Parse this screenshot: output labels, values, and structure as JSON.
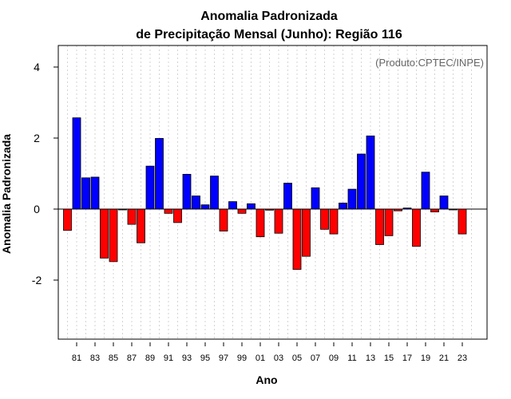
{
  "chart_data": {
    "type": "bar",
    "title": "Anomalia Padronizada",
    "subtitle": "de Precipitação Mensal (Junho): Região 116",
    "xlabel": "Ano",
    "ylabel": "Anomalia Padronizada",
    "credit": "(Produto:CPTEC/INPE)",
    "ylim": [
      -3.7,
      4.6
    ],
    "yticks": [
      -2,
      0,
      2,
      4
    ],
    "yticklabels": [
      "-2",
      "0",
      "2",
      "4"
    ],
    "grid": "vertical dotted",
    "positive_color": "#0000ff",
    "negative_color": "#ff0000",
    "years": [
      "1980",
      "1981",
      "1982",
      "1983",
      "1984",
      "1985",
      "1986",
      "1987",
      "1988",
      "1989",
      "1990",
      "1991",
      "1992",
      "1993",
      "1994",
      "1995",
      "1996",
      "1997",
      "1998",
      "1999",
      "2000",
      "2001",
      "2002",
      "2003",
      "2004",
      "2005",
      "2006",
      "2007",
      "2008",
      "2009",
      "2010",
      "2011",
      "2012",
      "2013",
      "2014",
      "2015",
      "2016",
      "2017",
      "2018",
      "2019",
      "2020",
      "2021",
      "2022",
      "2023",
      "2024"
    ],
    "values": [
      -0.6,
      2.57,
      0.88,
      0.9,
      -1.38,
      -1.48,
      -0.02,
      -0.43,
      -0.95,
      1.21,
      1.99,
      -0.12,
      -0.38,
      0.98,
      0.37,
      0.12,
      0.93,
      -0.62,
      0.21,
      -0.12,
      0.15,
      -0.78,
      -0.03,
      -0.68,
      0.73,
      -1.7,
      -1.33,
      0.6,
      -0.57,
      -0.7,
      0.17,
      0.56,
      1.55,
      2.06,
      -1.0,
      -0.75,
      -0.05,
      0.03,
      -1.05,
      1.04,
      -0.08,
      0.37,
      -0.02,
      -0.7,
      0.0
    ],
    "xtick_labels": [
      "81",
      "83",
      "85",
      "87",
      "89",
      "91",
      "93",
      "95",
      "97",
      "99",
      "01",
      "03",
      "05",
      "07",
      "09",
      "11",
      "13",
      "15",
      "17",
      "19",
      "21",
      "23"
    ]
  }
}
